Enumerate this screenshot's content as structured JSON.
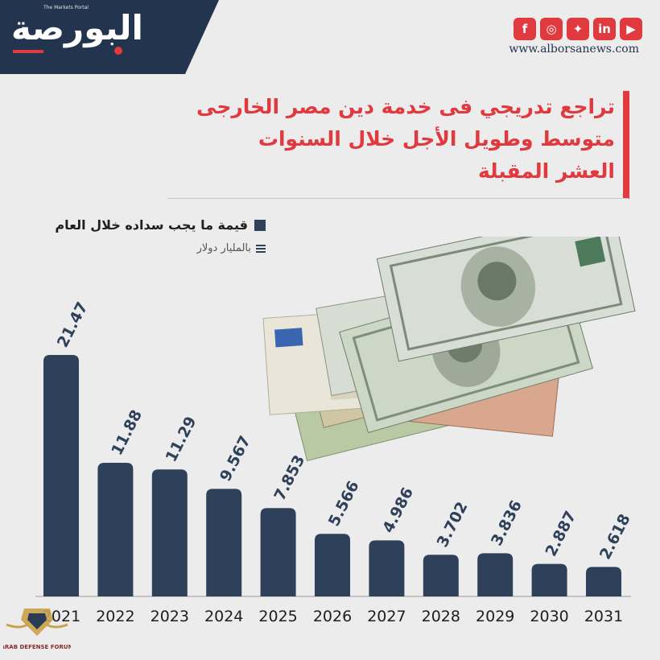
{
  "brand": {
    "logo_text": "البورصة",
    "logo_tagline": "The Markets Portal",
    "website": "www.alborsanews.com",
    "colors": {
      "navy": "#23344f",
      "bar": "#2f415a",
      "red": "#e0393e",
      "background": "#ececec"
    }
  },
  "social_icons": [
    {
      "name": "facebook-icon",
      "glyph": "f"
    },
    {
      "name": "instagram-icon",
      "glyph": "◎"
    },
    {
      "name": "twitter-icon",
      "glyph": "✦"
    },
    {
      "name": "linkedin-icon",
      "glyph": "in"
    },
    {
      "name": "youtube-icon",
      "glyph": "▶"
    }
  ],
  "title": {
    "line1": "تراجع تدريجي فى خدمة دين مصر الخارجى",
    "line2": "متوسط وطويل الأجل  خلال السنوات",
    "line3": "العشر المقبلة"
  },
  "legend": {
    "series_label": "قيمة ما يجب سداده خلال العام",
    "unit_label": "بالمليار دولار"
  },
  "watermark": {
    "title": "ARAB DEFENSE FORUM"
  },
  "chart_data": {
    "type": "bar",
    "categories": [
      "2021",
      "2022",
      "2023",
      "2024",
      "2025",
      "2026",
      "2027",
      "2028",
      "2029",
      "2030",
      "2031"
    ],
    "series": [
      {
        "name": "قيمة ما يجب سداده خلال العام",
        "values": [
          21.47,
          11.88,
          11.29,
          9.567,
          7.853,
          5.566,
          4.986,
          3.702,
          3.836,
          2.887,
          2.618
        ],
        "labels": [
          "21.47",
          "11.88",
          "11.29",
          "9.567",
          "7.853",
          "5.566",
          "4.986",
          "3.702",
          "3.836",
          "2.887",
          "2.618"
        ]
      }
    ],
    "ylabel": "بالمليار دولار",
    "ylim": [
      0,
      21.47
    ],
    "grid": false,
    "data_labels": "rotated-above-bar"
  }
}
